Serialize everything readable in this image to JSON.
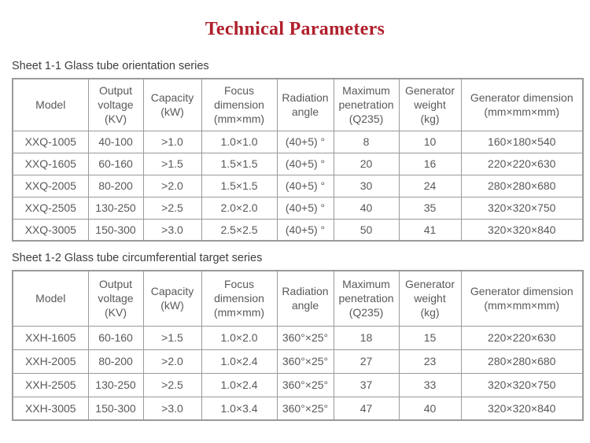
{
  "page": {
    "title": "Technical Parameters"
  },
  "colors": {
    "title_red": "#b01f2b",
    "table_text_gray": "#58595b",
    "border_gray": "#9a9a9a",
    "caption_gray": "#3f3f3f"
  },
  "tables": [
    {
      "caption": "Sheet 1-1 Glass tube orientation series",
      "headers": [
        "Model",
        "Output\nvoltage\n(KV)",
        "Capacity\n(kW)",
        "Focus\ndimension\n(mm×mm)",
        "Radiation\nangle",
        "Maximum\npenetration\n(Q235)",
        "Generator\nweight\n(kg)",
        "Generator dimension\n(mm×mm×mm)"
      ],
      "rows": [
        [
          "XXQ-1005",
          "40-100",
          ">1.0",
          "1.0×1.0",
          "(40+5) °",
          "8",
          "10",
          "160×180×540"
        ],
        [
          "XXQ-1605",
          "60-160",
          ">1.5",
          "1.5×1.5",
          "(40+5) °",
          "20",
          "16",
          "220×220×630"
        ],
        [
          "XXQ-2005",
          "80-200",
          ">2.0",
          "1.5×1.5",
          "(40+5) °",
          "30",
          "24",
          "280×280×680"
        ],
        [
          "XXQ-2505",
          "130-250",
          ">2.5",
          "2.0×2.0",
          "(40+5) °",
          "40",
          "35",
          "320×320×750"
        ],
        [
          "XXQ-3005",
          "150-300",
          ">3.0",
          "2.5×2.5",
          "(40+5) °",
          "50",
          "41",
          "320×320×840"
        ]
      ]
    },
    {
      "caption": "Sheet 1-2 Glass tube circumferential target series",
      "headers": [
        "Model",
        "Output\nvoltage\n(KV)",
        "Capacity\n(kW)",
        "Focus\ndimension\n(mm×mm)",
        "Radiation\nangle",
        "Maximum\npenetration\n(Q235)",
        "Generator\nweight\n(kg)",
        "Generator dimension\n(mm×mm×mm)"
      ],
      "rows": [
        [
          "XXH-1605",
          "60-160",
          ">1.5",
          "1.0×2.0",
          "360°×25°",
          "18",
          "15",
          "220×220×630"
        ],
        [
          "XXH-2005",
          "80-200",
          ">2.0",
          "1.0×2.4",
          "360°×25°",
          "27",
          "23",
          "280×280×680"
        ],
        [
          "XXH-2505",
          "130-250",
          ">2.5",
          "1.0×2.4",
          "360°×25°",
          "37",
          "33",
          "320×320×750"
        ],
        [
          "XXH-3005",
          "150-300",
          ">3.0",
          "1.0×3.4",
          "360°×25°",
          "47",
          "40",
          "320×320×840"
        ]
      ]
    }
  ]
}
